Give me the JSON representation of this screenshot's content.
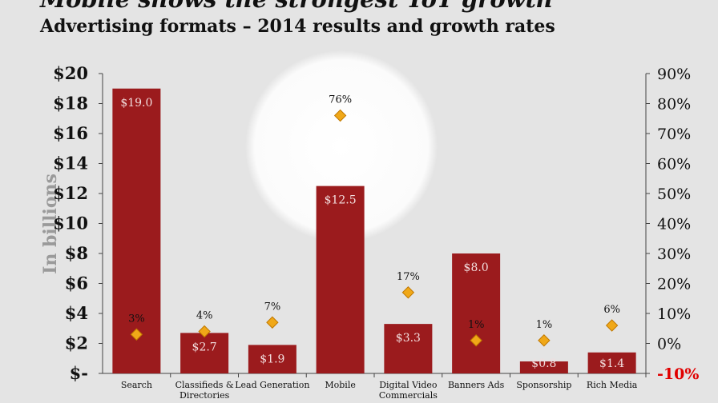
{
  "title": "Mobile shows the strongest YoY growth",
  "subtitle": "Advertising formats – 2014 results and growth rates",
  "colors": {
    "bar": "#9b1b1d",
    "marker": "#f0a818",
    "marker_stroke": "#c07800",
    "negative_tick": "#e00000",
    "background": "#e4e4e4"
  },
  "chart_data": {
    "type": "bar",
    "categories": [
      "Search",
      "Classifieds & Directories",
      "Lead Generation",
      "Mobile",
      "Digital Video Commercials",
      "Banners Ads",
      "Sponsorship",
      "Rich Media"
    ],
    "series": [
      {
        "axis": "left",
        "type": "bar",
        "values": [
          19.0,
          2.7,
          1.9,
          12.5,
          3.3,
          8.0,
          0.8,
          1.4
        ],
        "labels": [
          "$19.0",
          "$2.7",
          "$1.9",
          "$12.5",
          "$3.3",
          "$8.0",
          "$0.8",
          "$1.4"
        ]
      },
      {
        "axis": "right",
        "type": "scatter",
        "marker": "diamond",
        "values": [
          3,
          4,
          7,
          76,
          17,
          1,
          1,
          6
        ],
        "labels": [
          "3%",
          "4%",
          "7%",
          "76%",
          "17%",
          "1%",
          "1%",
          "6%"
        ]
      }
    ],
    "ylabel": "In billions",
    "ylim": [
      0,
      20
    ],
    "yticks": [
      "$-",
      "$2",
      "$4",
      "$6",
      "$8",
      "$10",
      "$12",
      "$14",
      "$16",
      "$18",
      "$20"
    ],
    "y2lim": [
      -10,
      90
    ],
    "y2ticks": [
      "-10%",
      "0%",
      "10%",
      "20%",
      "30%",
      "40%",
      "50%",
      "60%",
      "70%",
      "80%",
      "90%"
    ],
    "grid": false
  }
}
